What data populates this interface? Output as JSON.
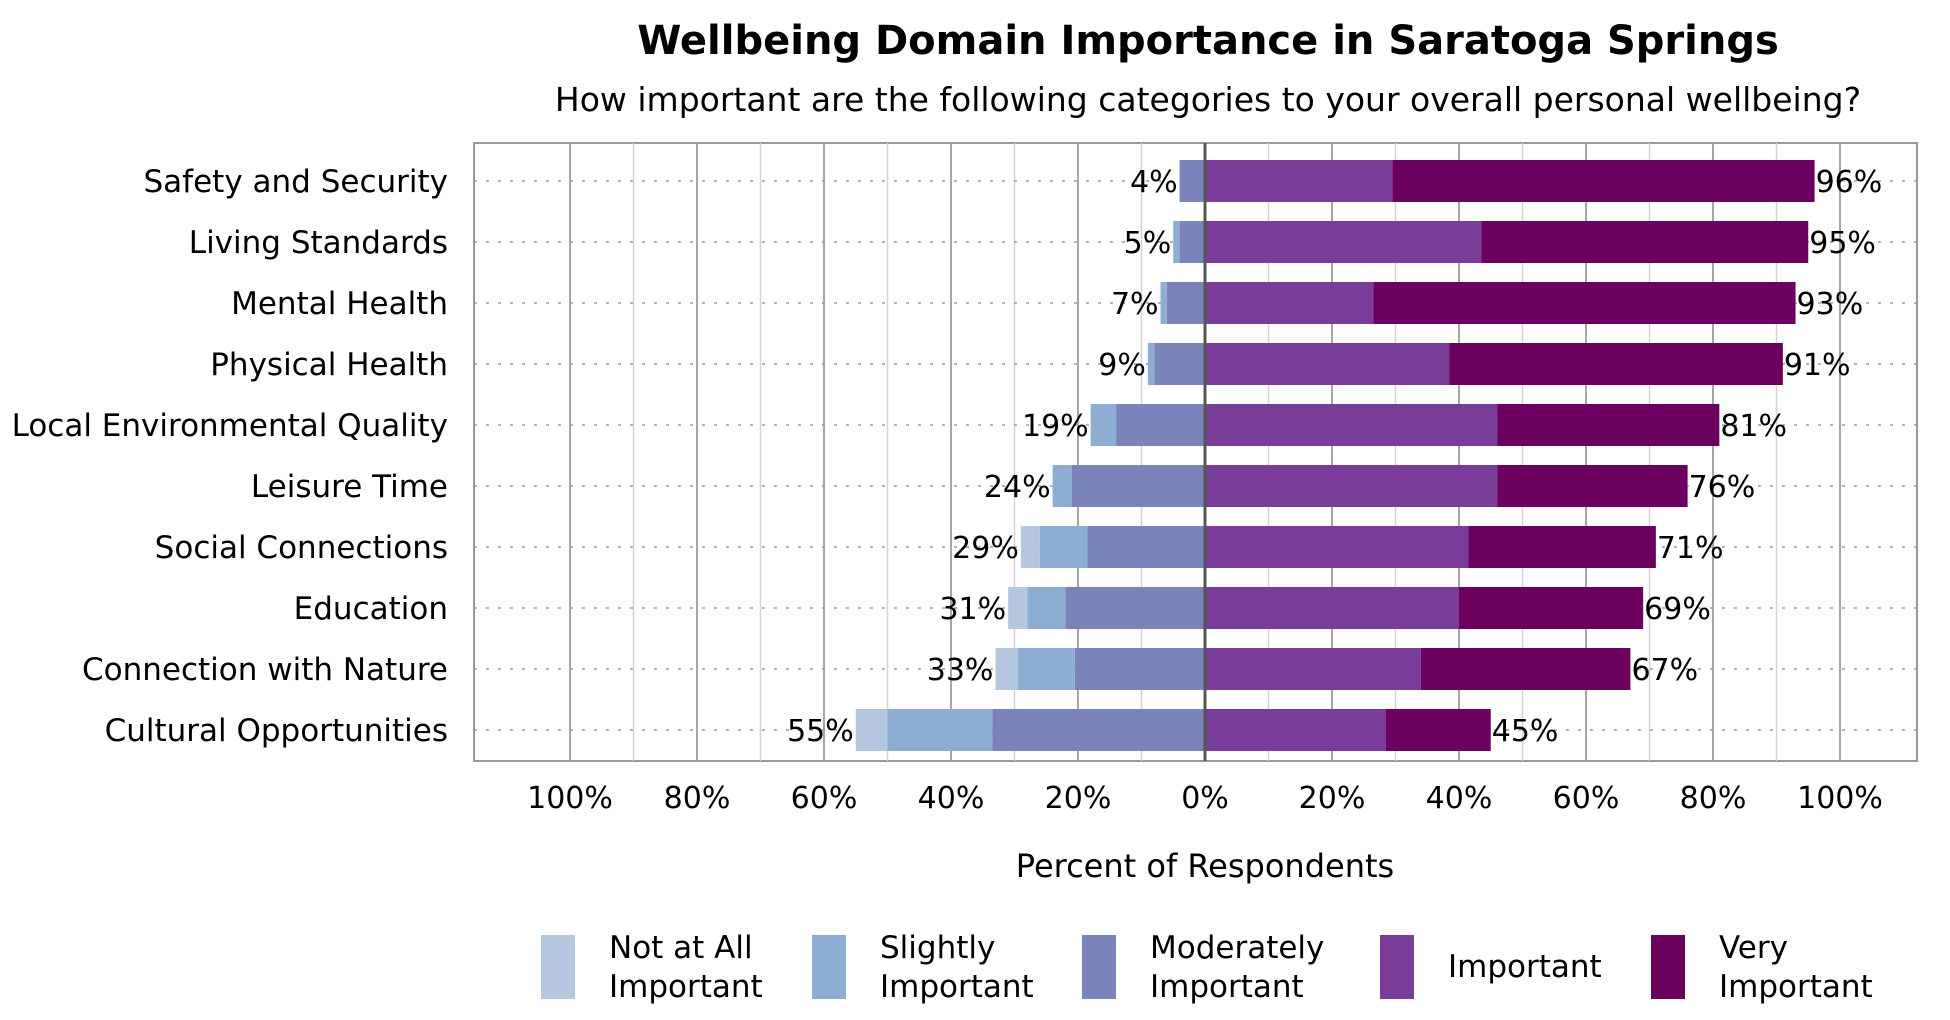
{
  "chart_data": {
    "type": "bar",
    "orientation": "horizontal",
    "stacking": "diverging",
    "title": "Wellbeing Domain Importance in Saratoga Springs",
    "subtitle": "How important are the following categories to your overall personal wellbeing?",
    "xlabel": "Percent of Respondents",
    "xlim": [
      -100,
      100
    ],
    "xticks": [
      "100%",
      "80%",
      "60%",
      "40%",
      "20%",
      "0%",
      "20%",
      "40%",
      "60%",
      "80%",
      "100%"
    ],
    "grid": true,
    "legend_position": "bottom",
    "categories": [
      "Safety and Security",
      "Living Standards",
      "Mental Health",
      "Physical Health",
      "Local Environmental Quality",
      "Leisure Time",
      "Social Connections",
      "Education",
      "Connection with Nature",
      "Cultural Opportunities"
    ],
    "series": [
      {
        "name": "Not at All Important",
        "side": "left",
        "color": "#b4c7df",
        "values": [
          0,
          0,
          0,
          0,
          0,
          0,
          3,
          3,
          3.5,
          5
        ]
      },
      {
        "name": "Slightly Important",
        "side": "left",
        "color": "#8eadd3",
        "values": [
          0,
          1,
          1,
          1,
          4,
          3,
          7.5,
          6,
          9,
          16.5
        ]
      },
      {
        "name": "Moderately Important",
        "side": "left",
        "color": "#7b83bb",
        "values": [
          4,
          4,
          6,
          8,
          14,
          21,
          18.5,
          22,
          20.5,
          33.5
        ]
      },
      {
        "name": "Important",
        "side": "right",
        "color": "#7a3c99",
        "values": [
          29.5,
          43.5,
          26.5,
          38.5,
          46,
          46,
          41.5,
          40,
          34,
          28.5
        ]
      },
      {
        "name": "Very Important",
        "side": "right",
        "color": "#6c005f",
        "values": [
          66.5,
          51.5,
          66.5,
          52.5,
          35,
          30,
          29.5,
          29,
          33,
          16.5
        ]
      }
    ],
    "left_totals": [
      "4%",
      "5%",
      "7%",
      "9%",
      "19%",
      "24%",
      "29%",
      "31%",
      "33%",
      "55%"
    ],
    "right_totals": [
      "96%",
      "95%",
      "93%",
      "91%",
      "81%",
      "76%",
      "71%",
      "69%",
      "67%",
      "45%"
    ],
    "legend": [
      {
        "lines": [
          "Not at All",
          "Important"
        ],
        "color": "#b4c7df"
      },
      {
        "lines": [
          "Slightly",
          "Important"
        ],
        "color": "#8eadd3"
      },
      {
        "lines": [
          "Moderately",
          "Important"
        ],
        "color": "#7b83bb"
      },
      {
        "lines": [
          "Important"
        ],
        "color": "#7a3c99"
      },
      {
        "lines": [
          "Very",
          "Important"
        ],
        "color": "#6c005f"
      }
    ]
  }
}
